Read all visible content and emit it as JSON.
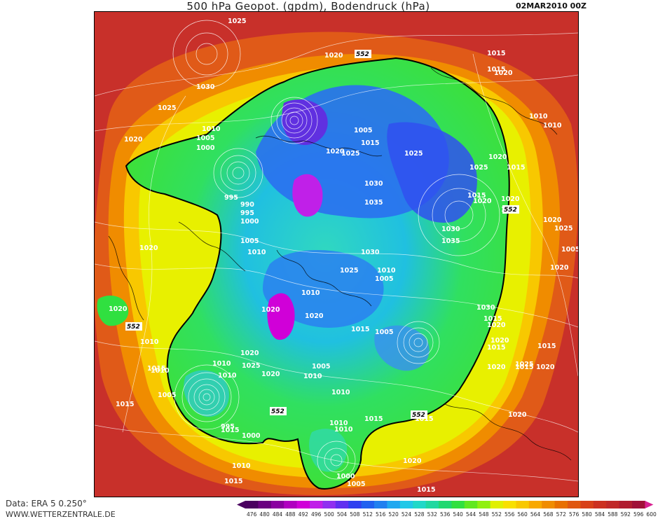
{
  "header": {
    "title": "500 hPa Geopot. (gpdm), Bodendruck (hPa)",
    "date": "02MAR2010  00Z"
  },
  "footer": {
    "source": "Data: ERA 5 0.250°",
    "site": "WWW.WETTERZENTRALE.DE"
  },
  "colorbar": {
    "ticks": [
      "476",
      "480",
      "484",
      "488",
      "492",
      "496",
      "500",
      "504",
      "508",
      "512",
      "516",
      "520",
      "524",
      "528",
      "532",
      "536",
      "540",
      "544",
      "548",
      "552",
      "556",
      "560",
      "564",
      "568",
      "572",
      "576",
      "580",
      "584",
      "588",
      "592",
      "596",
      "600"
    ],
    "colors": [
      "#4a0060",
      "#6a0080",
      "#8a00a0",
      "#b000c0",
      "#d000d8",
      "#c020e8",
      "#9030f0",
      "#6030f0",
      "#3040f0",
      "#2060f0",
      "#2080f0",
      "#20a8f0",
      "#20c8e8",
      "#20d8c8",
      "#20d8a0",
      "#20d870",
      "#30e040",
      "#60e820",
      "#90f010",
      "#e0f000",
      "#f8e000",
      "#f8c800",
      "#f8a800",
      "#f08c00",
      "#e87000",
      "#e05810",
      "#d84018",
      "#cc3020",
      "#c02828",
      "#b01c30",
      "#a01038",
      "#d82090"
    ]
  },
  "map": {
    "pressure_labels": [
      {
        "text": "1025"
      },
      {
        "text": "1020"
      },
      {
        "text": "1015"
      },
      {
        "text": "1015"
      },
      {
        "text": "1020"
      },
      {
        "text": "1030"
      },
      {
        "text": "1025"
      },
      {
        "text": "1010"
      },
      {
        "text": "1005"
      },
      {
        "text": "1000"
      },
      {
        "text": "1020"
      },
      {
        "text": "1010"
      },
      {
        "text": "1005"
      },
      {
        "text": "1015"
      },
      {
        "text": "1020"
      },
      {
        "text": "1025"
      },
      {
        "text": "1025"
      },
      {
        "text": "995"
      },
      {
        "text": "990"
      },
      {
        "text": "995"
      },
      {
        "text": "1000"
      },
      {
        "text": "1030"
      },
      {
        "text": "1035"
      },
      {
        "text": "1010"
      },
      {
        "text": "1020"
      },
      {
        "text": "1015"
      },
      {
        "text": "1025"
      },
      {
        "text": "1030"
      },
      {
        "text": "1035"
      },
      {
        "text": "1015"
      },
      {
        "text": "1020"
      },
      {
        "text": "1020"
      },
      {
        "text": "1015"
      },
      {
        "text": "1020"
      },
      {
        "text": "1005"
      },
      {
        "text": "1010"
      },
      {
        "text": "1030"
      },
      {
        "text": "1025"
      },
      {
        "text": "1010"
      },
      {
        "text": "1005"
      },
      {
        "text": "1020"
      },
      {
        "text": "1010"
      },
      {
        "text": "1020"
      },
      {
        "text": "1020"
      },
      {
        "text": "1010"
      },
      {
        "text": "1015"
      },
      {
        "text": "1015"
      },
      {
        "text": "1010"
      },
      {
        "text": "1020"
      },
      {
        "text": "1010"
      },
      {
        "text": "1005"
      },
      {
        "text": "1010"
      },
      {
        "text": "1025"
      },
      {
        "text": "1020"
      },
      {
        "text": "1005"
      },
      {
        "text": "1010"
      },
      {
        "text": "1015"
      },
      {
        "text": "995"
      },
      {
        "text": "1000"
      },
      {
        "text": "1010"
      },
      {
        "text": "1015"
      },
      {
        "text": "1010"
      },
      {
        "text": "1010"
      },
      {
        "text": "1015"
      },
      {
        "text": "1000"
      },
      {
        "text": "1005"
      },
      {
        "text": "1020"
      },
      {
        "text": "1015"
      },
      {
        "text": "1020"
      },
      {
        "text": "1015"
      },
      {
        "text": "1020"
      },
      {
        "text": "1025"
      },
      {
        "text": "1005"
      },
      {
        "text": "1020"
      },
      {
        "text": "1030"
      },
      {
        "text": "1015"
      },
      {
        "text": "1020"
      },
      {
        "text": "1015"
      },
      {
        "text": "1025"
      },
      {
        "text": "1020"
      },
      {
        "text": "1015"
      },
      {
        "text": "1010"
      },
      {
        "text": "1005"
      },
      {
        "text": "1015"
      },
      {
        "text": "1020"
      },
      {
        "text": "1015"
      },
      {
        "text": "1020"
      }
    ],
    "contour_552_labels": [
      "552",
      "552",
      "552",
      "552",
      "552"
    ]
  }
}
